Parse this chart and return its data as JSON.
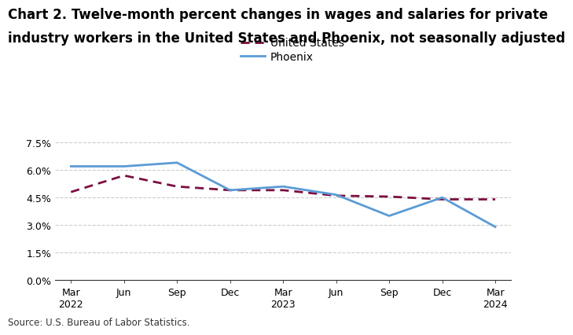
{
  "title_line1": "Chart 2. Twelve-month percent changes in wages and salaries for private",
  "title_line2": "industry workers in the United States and Phoenix, not seasonally adjusted",
  "source": "Source: U.S. Bureau of Labor Statistics.",
  "x_labels": [
    "Mar\n2022",
    "Jun",
    "Sep",
    "Dec",
    "Mar\n2023",
    "Jun",
    "Sep",
    "Dec",
    "Mar\n2024"
  ],
  "us_values": [
    4.8,
    5.7,
    5.1,
    4.9,
    4.9,
    4.6,
    4.55,
    4.4,
    4.4
  ],
  "phoenix_values": [
    6.2,
    6.2,
    6.4,
    4.9,
    5.1,
    4.65,
    3.5,
    4.5,
    2.9
  ],
  "us_color": "#7B1040",
  "phoenix_color": "#5B9BD5",
  "ylim": [
    0.0,
    8.5
  ],
  "yticks": [
    0.0,
    1.5,
    3.0,
    4.5,
    6.0,
    7.5
  ],
  "ytick_labels": [
    "0.0%",
    "1.5%",
    "3.0%",
    "4.5%",
    "6.0%",
    "7.5%"
  ],
  "background_color": "#ffffff",
  "grid_color": "#cccccc",
  "title_fontsize": 12,
  "legend_fontsize": 10,
  "axis_fontsize": 9,
  "source_fontsize": 8.5
}
